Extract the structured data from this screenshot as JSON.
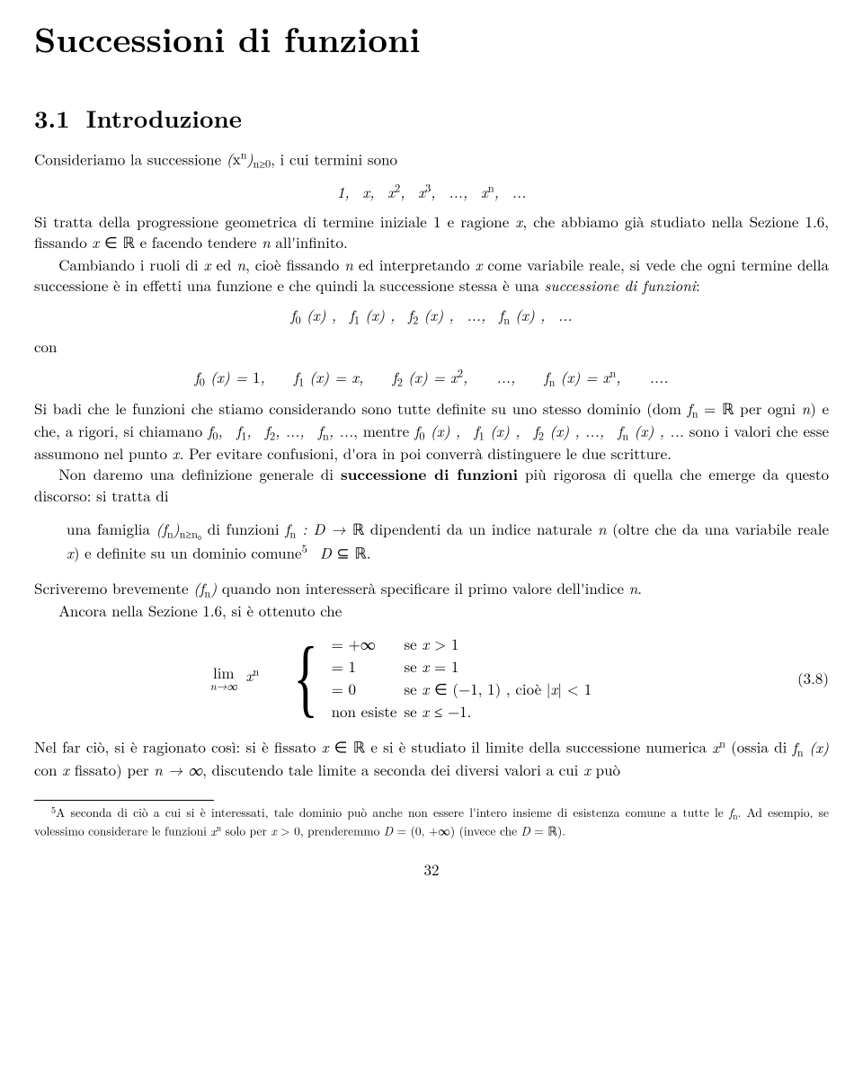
{
  "chapter_title": "Successioni di funzioni",
  "section": {
    "number": "3.1",
    "title": "Introduzione"
  },
  "p1_a": "Consideriamo la successione ",
  "p1_seq": "(xⁿ)",
  "p1_seq_sub": "n≥0",
  "p1_b": ", i cui termini sono",
  "eq1": "1,  x,  x²,  x³,  ...,  xⁿ,  ...",
  "p2_a": "Si tratta della progressione geometrica di termine iniziale 1 e ragione ",
  "p2_b": ", che abbiamo già studiato nella Sezione 1.6, fissando ",
  "p2_c": " e facendo tendere ",
  "p2_d": " all'infinito.",
  "p3_a": "Cambiando i ruoli di ",
  "p3_b": " ed ",
  "p3_c": ", cioè fissando ",
  "p3_d": " ed interpretando ",
  "p3_e": " come variabile reale, si vede che ogni termine della successione è in effetti una funzione e che quindi la successione stessa è una ",
  "p3_f": "successione di funzioni",
  "p3_g": ":",
  "eq2": "f₀ (x) ,  f₁ (x) ,  f₂ (x) ,  ...,  fₙ (x) ,  ...",
  "p4": "con",
  "eq3": "f₀ (x) = 1,    f₁ (x) = x,    f₂ (x) = x²,    ...,    fₙ (x) = xⁿ,    ....",
  "p5_a": "Si badi che le funzioni che stiamo considerando sono tutte definite su uno stesso dominio (dom ",
  "p5_b": " per ogni ",
  "p5_c": ") e che, a rigori, si chiamano ",
  "p5_d": ", mentre ",
  "p5_e": " sono i valori che esse assumono nel punto ",
  "p5_f": ". Per evitare confusioni, d'ora in poi converrà distinguere le due scritture.",
  "p6_a": "Non daremo una definizione generale di ",
  "p6_b": "successione di funzioni",
  "p6_c": " più rigorosa di quella che emerge da questo discorso: si tratta di",
  "bq_a": "una famiglia ",
  "bq_b": " di funzioni ",
  "bq_c": " dipendenti da un indice naturale ",
  "bq_d": " (oltre che da una variabile reale ",
  "bq_e": ") e definite su un dominio comune",
  "bq_f": ".",
  "p7_a": "Scriveremo brevemente ",
  "p7_b": " quando non interesserà specificare il primo valore dell'indice ",
  "p7_c": ".",
  "p8": "Ancora nella Sezione 1.6, si è ottenuto che",
  "cases": {
    "lim_label": "lim",
    "lim_sub": "n→∞",
    "lim_expr": "xⁿ",
    "rows": [
      {
        "l": "= +∞",
        "r": "se x > 1"
      },
      {
        "l": "= 1",
        "r": "se x = 1"
      },
      {
        "l": "= 0",
        "r": "se x ∈ (−1, 1) , cioè |x| < 1"
      },
      {
        "l": "non esiste",
        "r": "se x ≤ −1."
      }
    ]
  },
  "eqnum": "(3.8)",
  "p9_a": "Nel far ciò, si è ragionato così: si è fissato ",
  "p9_b": " e si è studiato il limite della successione numerica ",
  "p9_c": " (ossia di ",
  "p9_d": " con ",
  "p9_e": " fissato) per ",
  "p9_f": ", discutendo tale limite a seconda dei diversi valori a cui ",
  "p9_g": " può",
  "footnote": {
    "mark": "5",
    "a": "A seconda di ciò a cui si è interessati, tale dominio può anche non essere l'intero insieme di esistenza comune a tutte le ",
    "b": ". Ad esempio, se volessimo considerare le funzioni ",
    "c": " solo per ",
    "d": ", prenderemmo ",
    "e": " (invece che ",
    "f": ")."
  },
  "page_number": "32",
  "colors": {
    "text": "#000000",
    "bg": "#ffffff",
    "rule": "#000000"
  },
  "fontsize": {
    "body_pt": 12,
    "chapter_pt": 27,
    "section_pt": 19,
    "footnote_pt": 9.5
  }
}
